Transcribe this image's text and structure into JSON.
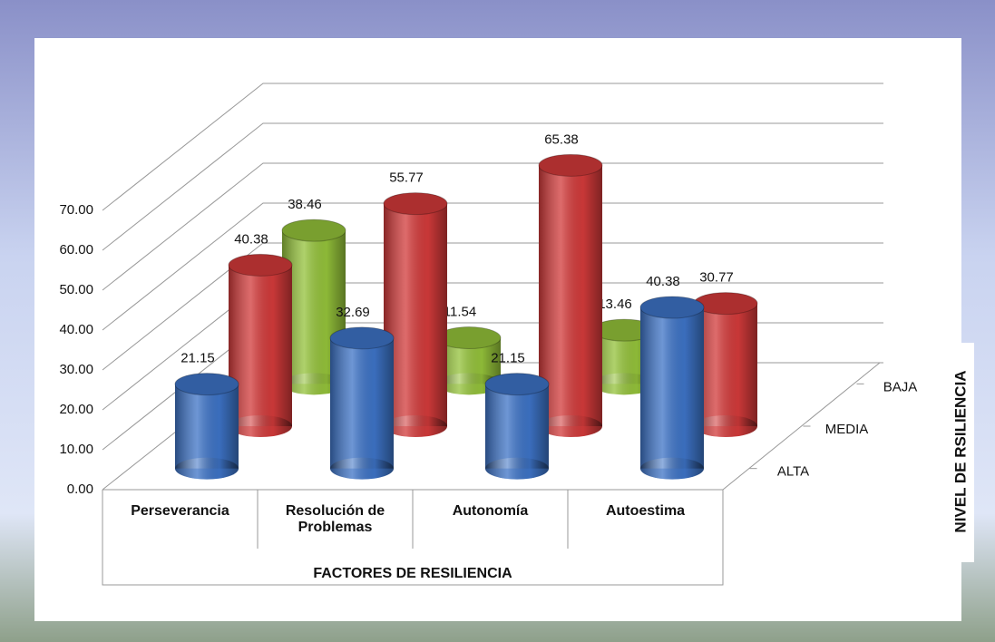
{
  "chart_data": {
    "type": "bar3d",
    "categories": [
      "Perseverancia",
      "Resolución de Problemas",
      "Autonomía",
      "Autoestima"
    ],
    "series": [
      {
        "name": "ALTA",
        "color": "#3d73c6",
        "values": [
          21.15,
          32.69,
          21.15,
          40.38
        ]
      },
      {
        "name": "MEDIA",
        "color": "#d23a3a",
        "values": [
          40.38,
          55.77,
          65.38,
          30.77
        ]
      },
      {
        "name": "BAJA",
        "color": "#94c23a",
        "values": [
          38.46,
          11.54,
          13.46,
          null
        ]
      }
    ],
    "ylim": [
      0,
      70
    ],
    "yticks": [
      {
        "value": 0,
        "label": "0.00"
      },
      {
        "value": 10,
        "label": "10.00"
      },
      {
        "value": 20,
        "label": "20.00"
      },
      {
        "value": 30,
        "label": "30.00"
      },
      {
        "value": 40,
        "label": "40.00"
      },
      {
        "value": 50,
        "label": "50.00"
      },
      {
        "value": 60,
        "label": "60.00"
      },
      {
        "value": 70,
        "label": "70.00"
      }
    ],
    "xlabel": "FACTORES DE RESILIENCIA",
    "zlabel": "NIVEL DE RSILIENCIA",
    "grid": true
  }
}
